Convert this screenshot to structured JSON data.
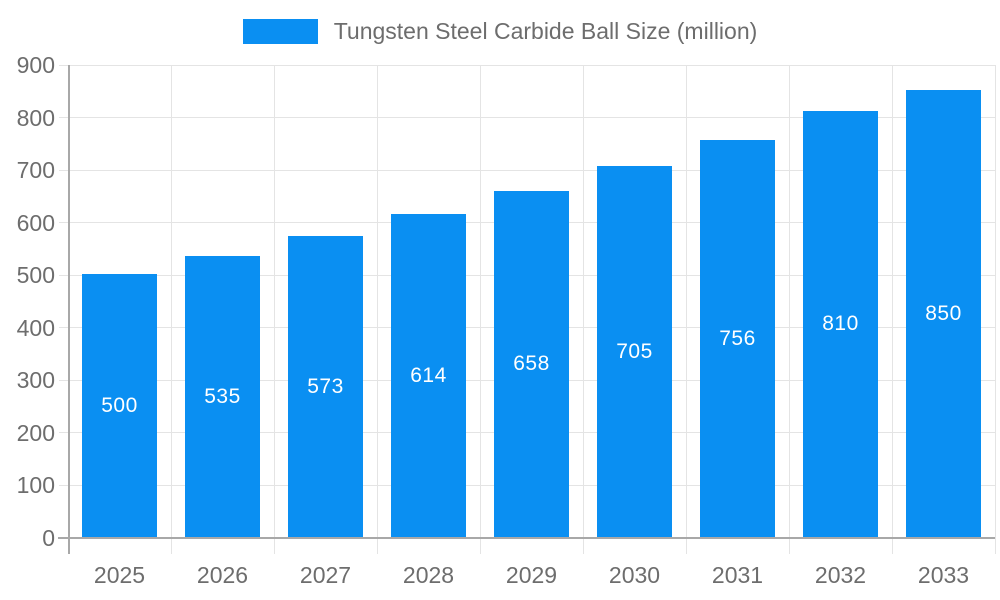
{
  "chart_data": {
    "type": "bar",
    "title": "",
    "legend_label": "Tungsten Steel Carbide Ball Size (million)",
    "legend_position": "top",
    "categories": [
      "2025",
      "2026",
      "2027",
      "2028",
      "2029",
      "2030",
      "2031",
      "2032",
      "2033"
    ],
    "values": [
      500,
      535,
      573,
      614,
      658,
      705,
      756,
      810,
      850
    ],
    "value_labels": [
      "500",
      "535",
      "573",
      "614",
      "658",
      "705",
      "756",
      "810",
      "850"
    ],
    "xlabel": "",
    "ylabel": "",
    "ylim": [
      0,
      900
    ],
    "yticks": [
      "0",
      "100",
      "200",
      "300",
      "400",
      "500",
      "600",
      "700",
      "800",
      "900"
    ],
    "grid": true,
    "colors": {
      "bar": "#0a8ff2",
      "value_label": "#ffffff",
      "axis": "#a8a8a8",
      "grid": "#e4e4e4",
      "tick_label": "#6d6d6d",
      "legend_text": "#6d6d6d"
    }
  }
}
